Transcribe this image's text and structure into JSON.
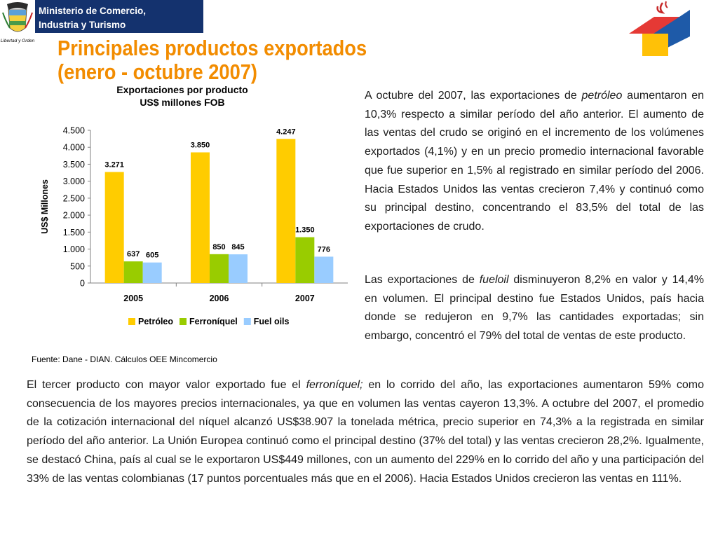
{
  "header": {
    "ministry_line1": "Ministerio de Comercio,",
    "ministry_line2": "Industria y Turismo",
    "crest_motto": "Libertad y Orden",
    "title_line1": "Principales productos exportados",
    "title_line2": "(enero - octubre 2007)"
  },
  "chart_data": {
    "type": "bar",
    "title": "Exportaciones por producto",
    "subtitle": "US$ millones FOB",
    "ylabel": "US$ Millones",
    "xlabel": "",
    "categories": [
      "2005",
      "2006",
      "2007"
    ],
    "series": [
      {
        "name": "Petróleo",
        "values": [
          3271,
          3850,
          4247
        ],
        "labels": [
          "3.271",
          "3.850",
          "4.247"
        ],
        "color": "#ffcc00"
      },
      {
        "name": "Ferroníquel",
        "values": [
          637,
          850,
          1350
        ],
        "labels": [
          "637",
          "850",
          "1.350"
        ],
        "color": "#99cc00"
      },
      {
        "name": "Fuel oils",
        "values": [
          605,
          845,
          776
        ],
        "labels": [
          "605",
          "845",
          "776"
        ],
        "color": "#99ccff"
      }
    ],
    "ylim": [
      0,
      4500
    ],
    "yticks": [
      0,
      500,
      1000,
      1500,
      2000,
      2500,
      3000,
      3500,
      4000,
      4500
    ],
    "ytick_labels": [
      "0",
      "500",
      "1.000",
      "1.500",
      "2.000",
      "2.500",
      "3.000",
      "3.500",
      "4.000",
      "4.500"
    ],
    "legend_position": "bottom",
    "grid": false
  },
  "source": "Fuente: Dane - DIAN. Cálculos OEE Mincomercio",
  "paragraph1": {
    "pre": "A octubre del 2007, las exportaciones de ",
    "italic": "petróleo",
    "post": " aumentaron en 10,3% respecto a similar período del año anterior. El aumento de las ventas del crudo se originó en el incremento de los volúmenes exportados (4,1%) y en un precio promedio internacional favorable que fue superior en 1,5% al registrado en similar período del 2006. Hacia Estados Unidos las ventas crecieron 7,4% y continuó como su principal destino, concentrando el 83,5% del total de las exportaciones de crudo."
  },
  "paragraph2": {
    "pre": "Las exportaciones de ",
    "italic": "fueloil",
    "post": " disminuyeron 8,2% en valor y 14,4% en volumen. El principal destino fue Estados Unidos, país hacia donde se redujeron en 9,7% las cantidades exportadas; sin embargo, concentró el 79% del total de ventas de este producto."
  },
  "paragraph3": {
    "pre": "El tercer producto con mayor valor exportado fue el ",
    "italic": "ferroníquel;",
    "post": " en lo corrido del año, las exportaciones aumentaron 59% como consecuencia de los mayores precios internacionales, ya que en volumen las ventas cayeron 13,3%. A octubre del 2007, el promedio de la cotización internacional del níquel alcanzó US$38.907 la tonelada métrica, precio superior en 74,3% a la registrada en similar período del año anterior. La Unión Europea continuó como el principal destino (37% del total) y las ventas crecieron 28,2%. Igualmente, se destacó China, país al cual se le exportaron US$449 millones, con un aumento del 229% en lo corrido del año y una participación del 33% de las ventas colombianas (17 puntos porcentuales más que en el 2006). Hacia Estados Unidos crecieron las ventas en 111%."
  },
  "colors": {
    "header_bar": "#14326e",
    "title": "#f28c00"
  }
}
